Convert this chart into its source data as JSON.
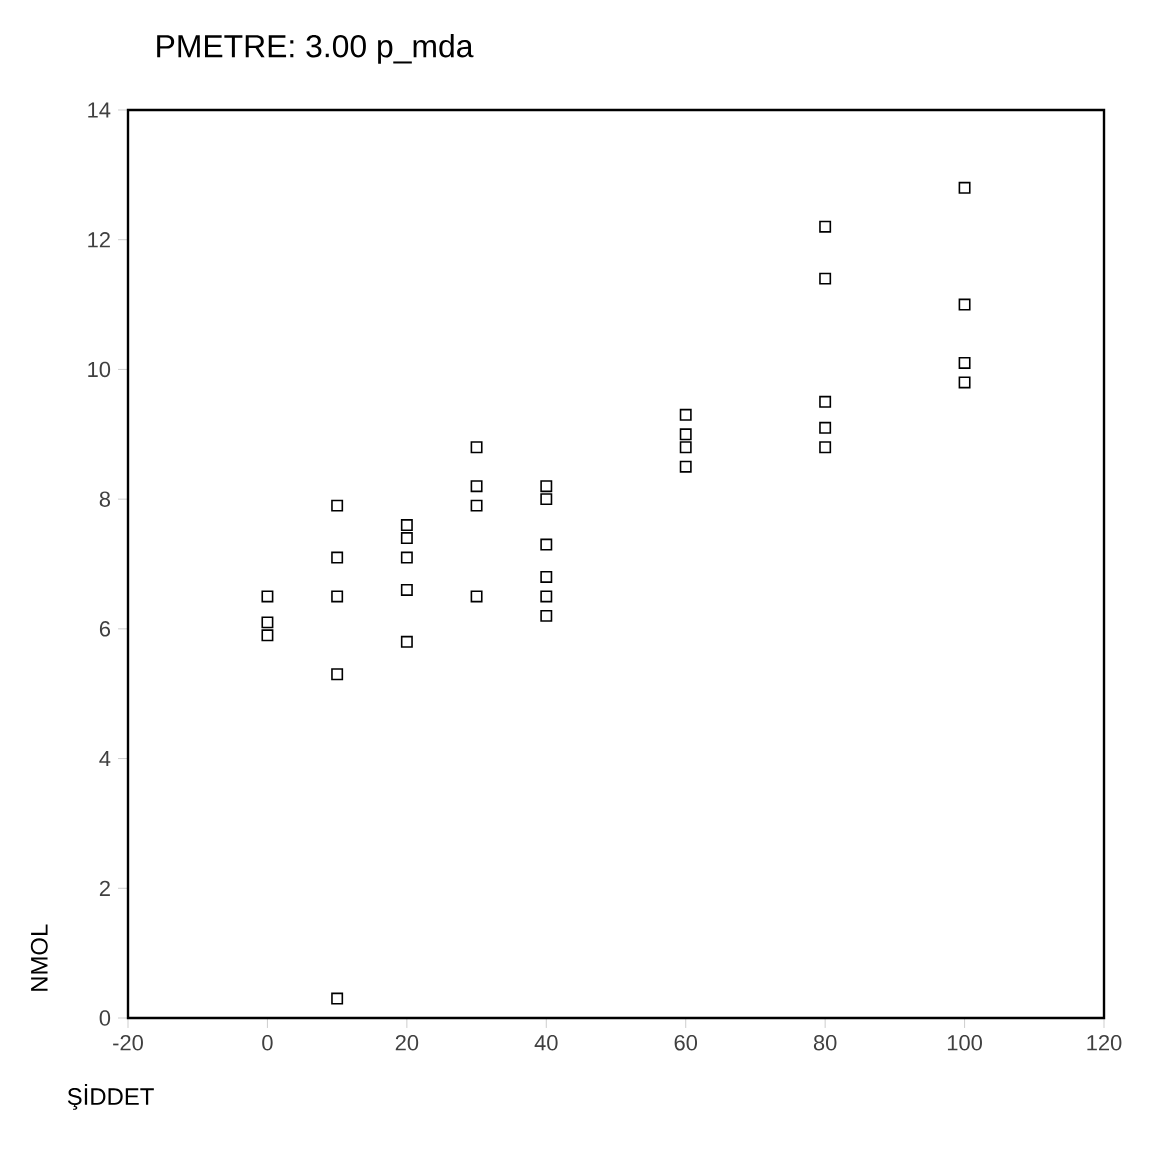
{
  "chart_data": {
    "type": "scatter",
    "title": "PMETRE:     3.00  p_mda",
    "xlabel": "ŞİDDET",
    "ylabel": "NMOL",
    "x": [
      0,
      0,
      0,
      10,
      10,
      10,
      10,
      10,
      20,
      20,
      20,
      20,
      20,
      30,
      30,
      30,
      30,
      40,
      40,
      40,
      40,
      40,
      40,
      60,
      60,
      60,
      60,
      80,
      80,
      80,
      80,
      80,
      100,
      100,
      100,
      100
    ],
    "series": [
      {
        "color": "#000000",
        "values": [
          6.5,
          6.1,
          5.9,
          7.9,
          7.1,
          6.5,
          5.3,
          0.3,
          7.6,
          7.4,
          7.1,
          6.6,
          5.8,
          8.8,
          8.2,
          7.9,
          6.5,
          8.2,
          8.0,
          7.3,
          6.8,
          6.5,
          6.2,
          9.3,
          9.0,
          8.8,
          8.5,
          12.2,
          11.4,
          9.5,
          9.1,
          8.8,
          12.8,
          11.0,
          10.1,
          9.8
        ]
      }
    ],
    "xlim": [
      -20,
      120
    ],
    "ylim": [
      0,
      14
    ],
    "xticks": [
      -20,
      0,
      20,
      40,
      60,
      80,
      100,
      120
    ],
    "yticks": [
      0,
      2,
      4,
      6,
      8,
      10,
      12,
      14
    ],
    "marker": "square"
  }
}
